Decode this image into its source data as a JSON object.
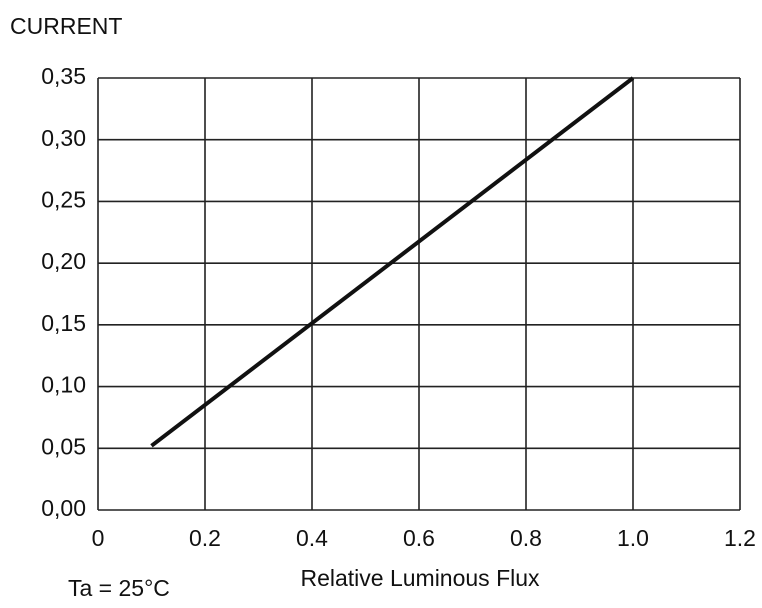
{
  "chart_data": {
    "type": "line",
    "y_label": "CURRENT",
    "x_label": "Relative Luminous Flux",
    "annotation": "Ta = 25°C",
    "x": [
      0.1,
      1.0
    ],
    "values": [
      0.052,
      0.35
    ],
    "color": "#111111",
    "xlim": [
      0,
      1.2
    ],
    "xticks": [
      0,
      0.2,
      0.4,
      0.6,
      0.8,
      {
        "value": 1.0,
        "label": "1.0"
      },
      1.2
    ],
    "ylim": [
      0,
      0.35
    ],
    "yticks": [
      {
        "value": 0,
        "label": "0,00"
      },
      {
        "value": 0.05,
        "label": "0,05"
      },
      {
        "value": 0.1,
        "label": "0,10"
      },
      {
        "value": 0.15,
        "label": "0,15"
      },
      {
        "value": 0.2,
        "label": "0,20"
      },
      {
        "value": 0.25,
        "label": "0,25"
      },
      {
        "value": 0.3,
        "label": "0,30"
      },
      {
        "value": 0.35,
        "label": "0,35"
      }
    ],
    "grid": true
  }
}
